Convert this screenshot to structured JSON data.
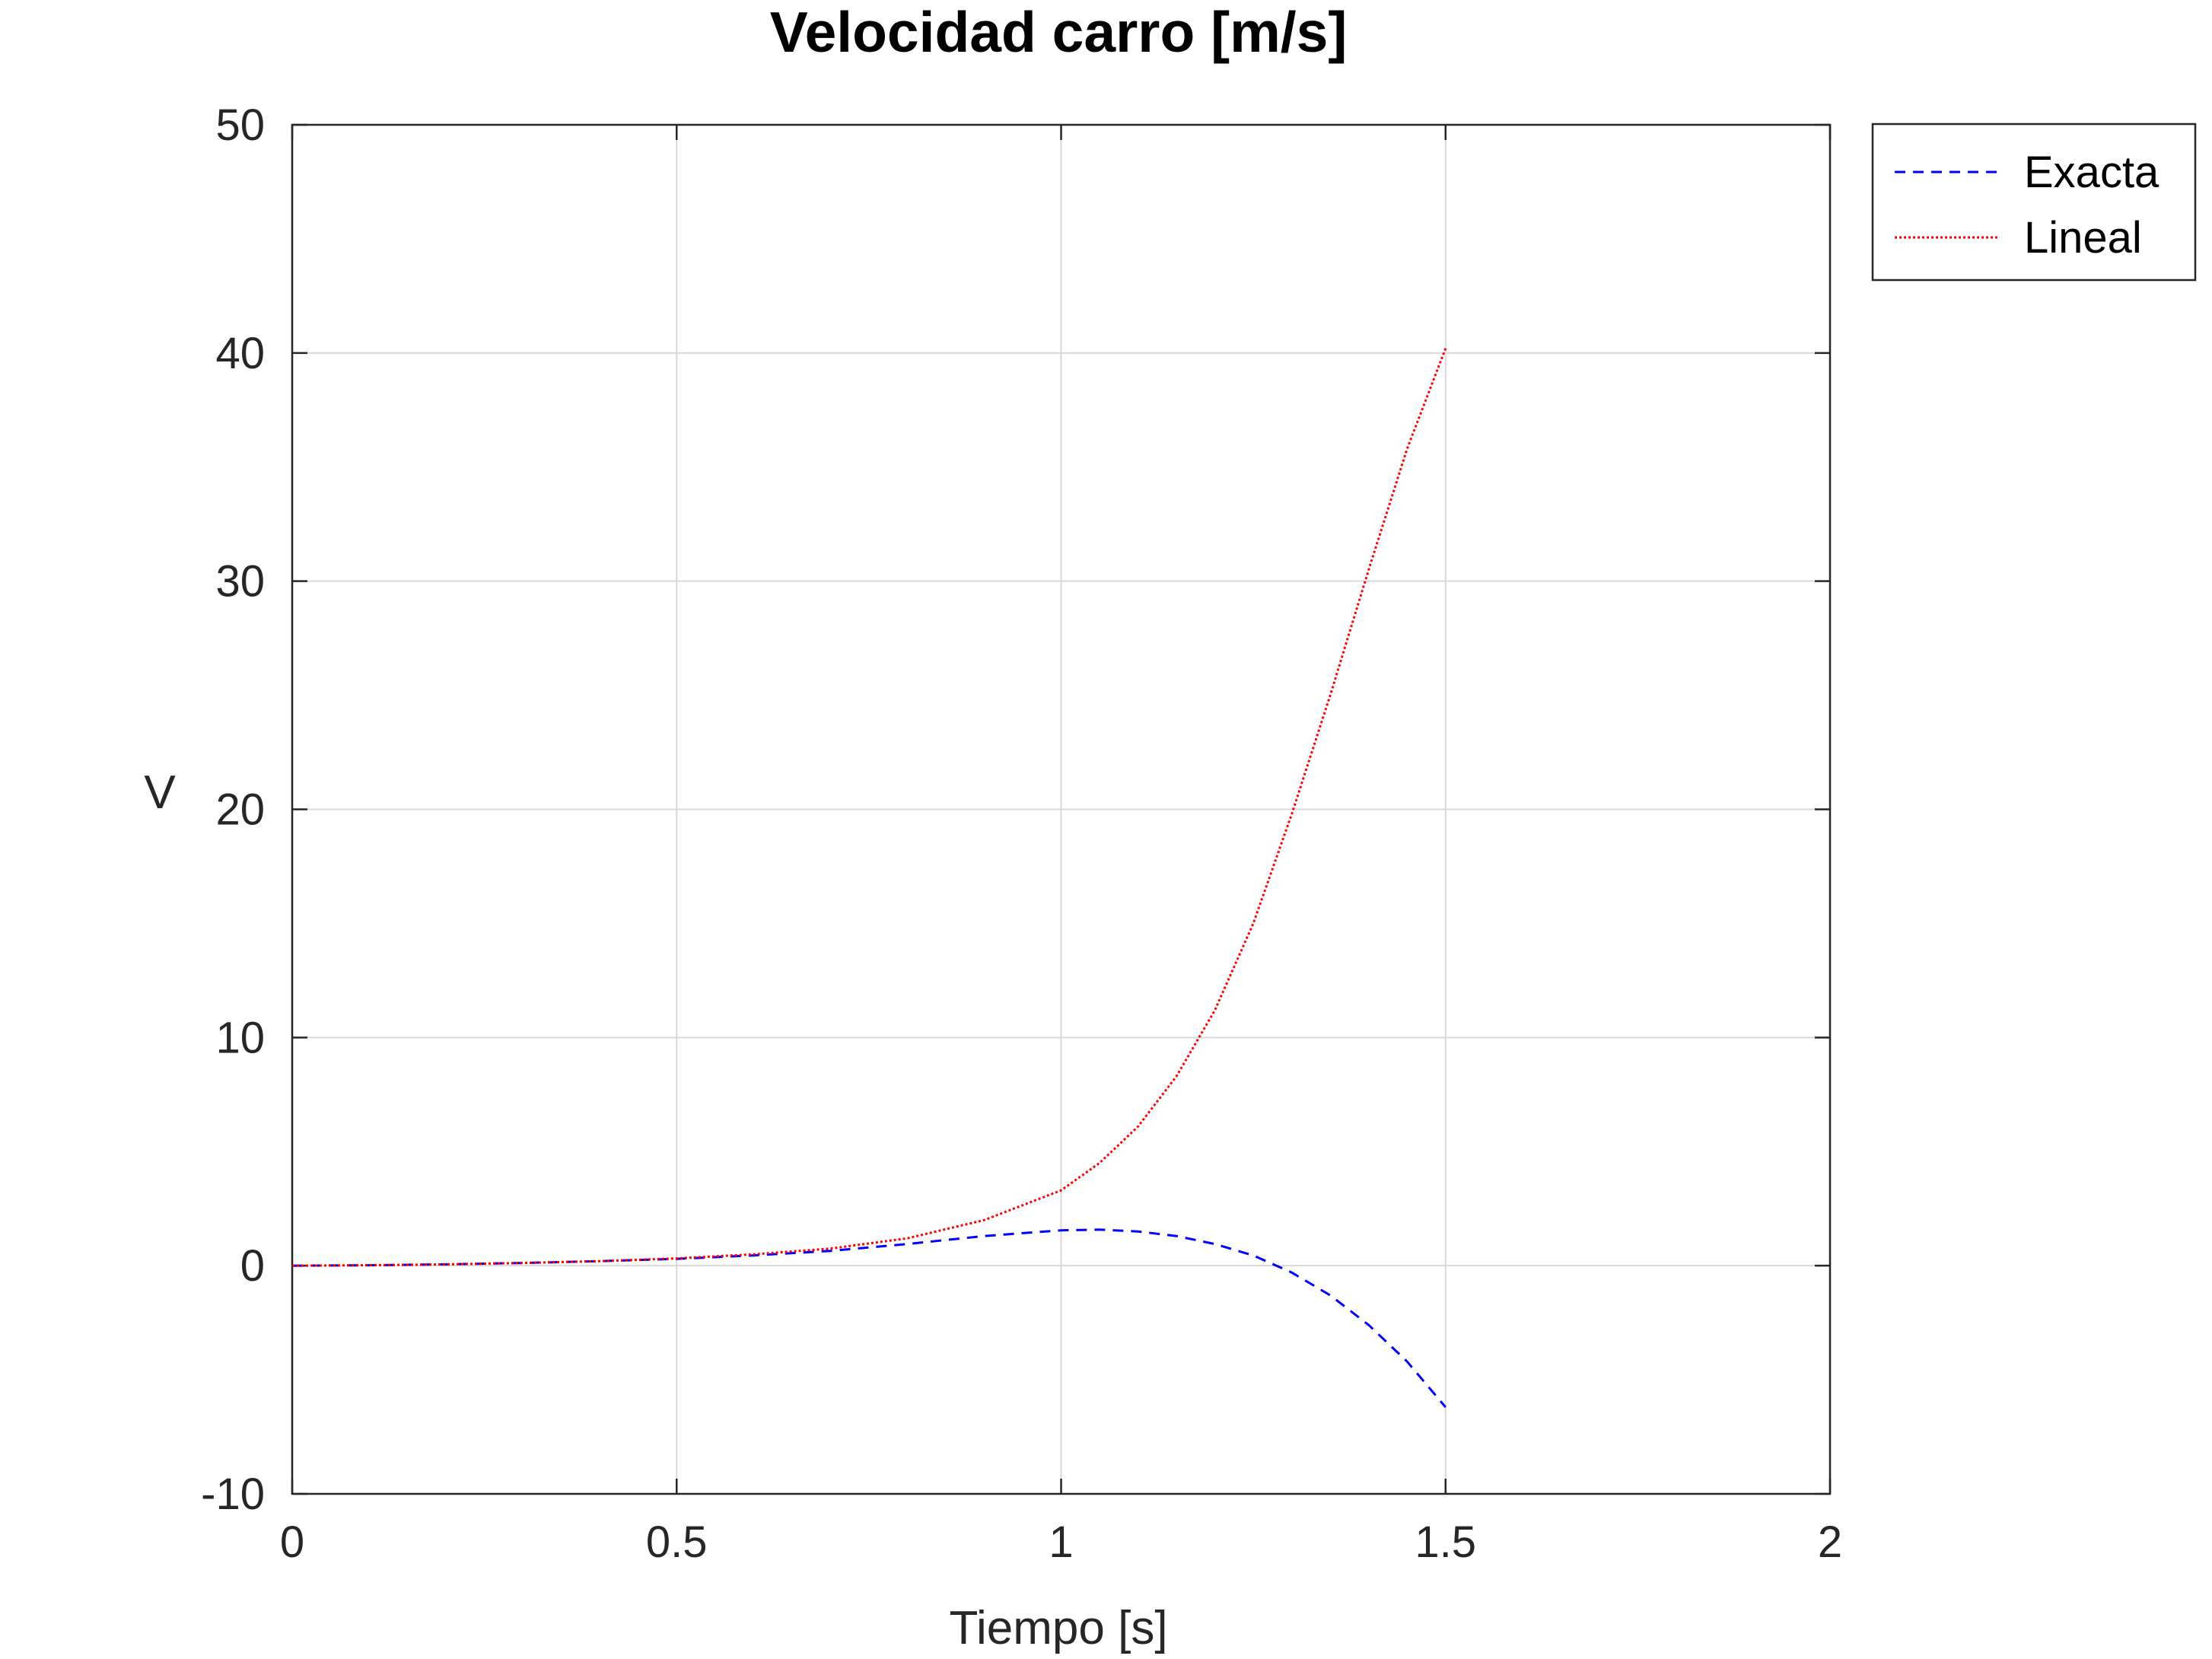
{
  "chart_data": {
    "type": "line",
    "title": "Velocidad carro [m/s]",
    "xlabel": "Tiempo [s]",
    "ylabel": "V",
    "xlim": [
      0,
      2
    ],
    "ylim": [
      -10,
      50
    ],
    "xticks": [
      0,
      0.5,
      1,
      1.5,
      2
    ],
    "xtick_labels": [
      "0",
      "0.5",
      "1",
      "1.5",
      "2"
    ],
    "yticks": [
      -10,
      0,
      10,
      20,
      30,
      40,
      50
    ],
    "ytick_labels": [
      "-10",
      "0",
      "10",
      "20",
      "30",
      "40",
      "50"
    ],
    "grid": true,
    "legend_position": "outside top-right",
    "series": [
      {
        "name": "Exacta",
        "color": "#0000ff",
        "style": "dashed",
        "x": [
          0,
          0.1,
          0.2,
          0.3,
          0.4,
          0.5,
          0.6,
          0.7,
          0.8,
          0.9,
          1.0,
          1.05,
          1.1,
          1.15,
          1.2,
          1.25,
          1.3,
          1.35,
          1.4,
          1.45,
          1.5
        ],
        "y": [
          0,
          0.02,
          0.06,
          0.12,
          0.2,
          0.3,
          0.45,
          0.65,
          0.95,
          1.3,
          1.55,
          1.58,
          1.5,
          1.3,
          0.95,
          0.45,
          -0.3,
          -1.3,
          -2.6,
          -4.2,
          -6.2
        ]
      },
      {
        "name": "Lineal",
        "color": "#ff0000",
        "style": "dotted",
        "x": [
          0,
          0.1,
          0.2,
          0.3,
          0.4,
          0.5,
          0.6,
          0.7,
          0.8,
          0.9,
          1.0,
          1.05,
          1.1,
          1.15,
          1.2,
          1.25,
          1.3,
          1.35,
          1.4,
          1.45,
          1.5
        ],
        "y": [
          0,
          0.02,
          0.06,
          0.12,
          0.2,
          0.32,
          0.5,
          0.75,
          1.2,
          2.0,
          3.3,
          4.5,
          6.1,
          8.3,
          11.2,
          15.0,
          19.8,
          25.0,
          30.5,
          35.8,
          40.2
        ]
      }
    ]
  }
}
